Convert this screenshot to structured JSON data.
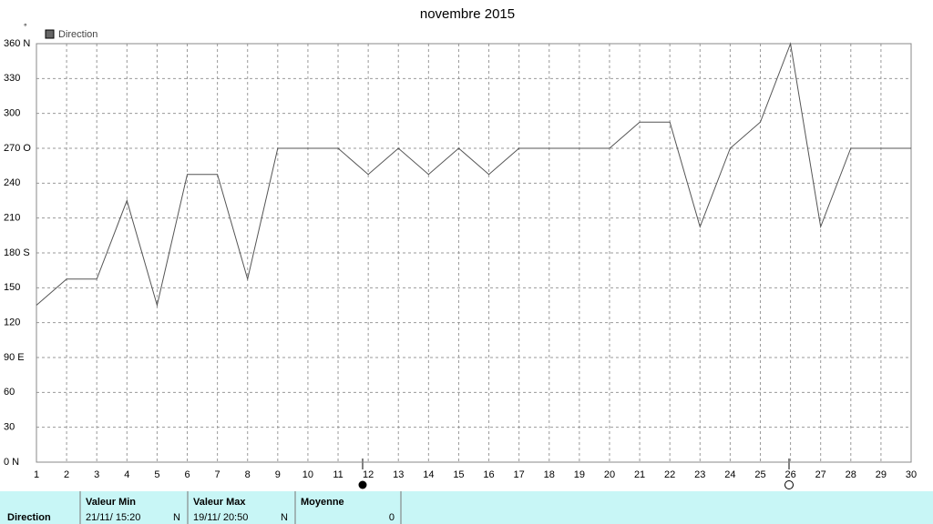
{
  "chart_data": {
    "type": "line",
    "title": "novembre 2015",
    "y_unit": "°",
    "x": [
      1,
      2,
      3,
      4,
      5,
      6,
      7,
      8,
      9,
      10,
      11,
      12,
      13,
      14,
      15,
      16,
      17,
      18,
      19,
      20,
      21,
      22,
      23,
      24,
      25,
      26,
      27,
      28,
      29,
      30
    ],
    "series": [
      {
        "name": "Direction",
        "color": "#555555",
        "values": [
          135,
          157.5,
          157.5,
          225,
          135,
          247.5,
          247.5,
          157.5,
          270,
          270,
          270,
          247.5,
          270,
          247.5,
          270,
          247.5,
          270,
          270,
          270,
          270,
          292.5,
          292.5,
          202.5,
          270,
          292.5,
          360,
          202.5,
          270,
          270,
          270
        ]
      }
    ],
    "xlim": [
      1,
      30
    ],
    "xticks": [
      1,
      2,
      3,
      4,
      5,
      6,
      7,
      8,
      9,
      10,
      11,
      12,
      13,
      14,
      15,
      16,
      17,
      18,
      19,
      20,
      21,
      22,
      23,
      24,
      25,
      26,
      27,
      28,
      29,
      30
    ],
    "ylim": [
      0,
      360
    ],
    "yticks": [
      {
        "value": 0,
        "label": "0 N"
      },
      30,
      60,
      {
        "value": 90,
        "label": "90 E"
      },
      120,
      150,
      {
        "value": 180,
        "label": "180 S"
      },
      210,
      240,
      {
        "value": 270,
        "label": "270 O"
      },
      300,
      330,
      {
        "value": 360,
        "label": "360 N"
      }
    ],
    "grid": true
  },
  "summary": {
    "row_label": "Direction",
    "columns": [
      {
        "header": "Valeur Min",
        "date": "21/11/ 15:20",
        "dir": "N"
      },
      {
        "header": "Valeur Max",
        "date": "19/11/ 20:50",
        "dir": "N"
      },
      {
        "header": "Moyenne",
        "value": "0"
      }
    ]
  }
}
